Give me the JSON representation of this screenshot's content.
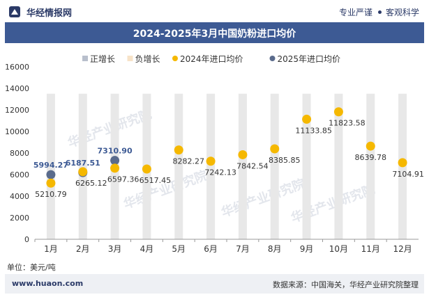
{
  "header": {
    "site_name": "华经情报网",
    "tag1": "专业严谨",
    "tag2": "客观科学"
  },
  "footer": {
    "unit": "单位：美元/吨",
    "website": "www.huaon.com",
    "source": "数据来源：中国海关，华经产业研究院整理"
  },
  "watermark": "华经产业研究院",
  "watermark_url": "www.huaon.com",
  "chart_data": {
    "type": "scatter",
    "title": "2024-2025年3月中国奶粉进口均价",
    "categories": [
      "1月",
      "2月",
      "3月",
      "4月",
      "5月",
      "6月",
      "7月",
      "8月",
      "9月",
      "10月",
      "11月",
      "12月"
    ],
    "series": [
      {
        "name": "2024年进口均价",
        "color": "#f5b800",
        "values": [
          5210.79,
          6265.12,
          6597.36,
          6517.45,
          8282.27,
          7242.13,
          7842.54,
          8385.85,
          11133.85,
          11823.58,
          8639.78,
          7104.91
        ]
      },
      {
        "name": "2025年进口均价",
        "color": "#5a6b8c",
        "values": [
          5994.27,
          6187.51,
          7310.9
        ]
      }
    ],
    "legend_extra": [
      {
        "name": "正增长",
        "color": "#b8bfcc"
      },
      {
        "name": "负增长",
        "color": "#f7e3c8"
      }
    ],
    "ylim": [
      0,
      16000
    ],
    "yticks": [
      0,
      2000,
      4000,
      6000,
      8000,
      10000,
      12000,
      14000,
      16000
    ],
    "bar_color": "#e8e8e8",
    "legend_position": "top"
  }
}
